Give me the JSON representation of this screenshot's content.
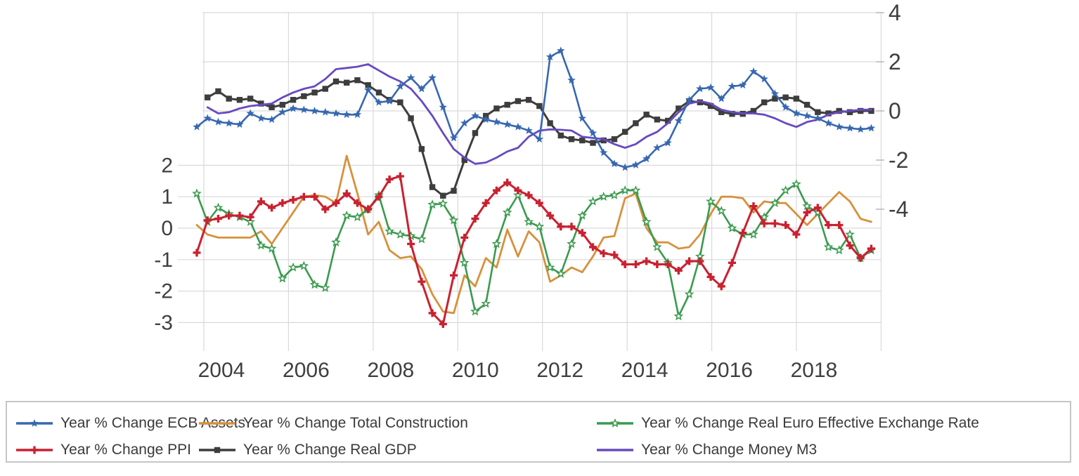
{
  "chart": {
    "background_color": "#ffffff",
    "grid_color": "#d9d9d9",
    "text_color": "#3f3f3f",
    "x_axis": {
      "tick_labels": [
        "2004",
        "2006",
        "2008",
        "2010",
        "2012",
        "2014",
        "2016",
        "2018"
      ]
    },
    "left_axis": {
      "tick_labels": [
        "2",
        "1",
        "0",
        "-1",
        "-2",
        "-3"
      ],
      "tick_values": [
        2,
        1,
        0,
        -1,
        -2,
        -3
      ]
    },
    "right_axis": {
      "tick_labels": [
        "4",
        "2",
        "0",
        "-2",
        "-4"
      ],
      "tick_values": [
        4,
        2,
        0,
        -2,
        -4
      ]
    }
  },
  "chart_data": {
    "type": "line",
    "title": "",
    "x_start": "2003Q4",
    "x_end": "2019Q3",
    "frequency": "quarterly",
    "n_points": 64,
    "x_tick_labels": [
      "2004",
      "2006",
      "2008",
      "2010",
      "2012",
      "2014",
      "2016",
      "2018"
    ],
    "left_axis_ticks": [
      2,
      1,
      0,
      -1,
      -2,
      -3
    ],
    "right_axis_ticks": [
      4,
      2,
      0,
      -2,
      -4
    ],
    "grid": true,
    "legend_position": "bottom",
    "legend_rows": [
      [
        0,
        1,
        2
      ],
      [
        3,
        4,
        5
      ]
    ],
    "series": [
      {
        "name": "Year % Change ECB Assets",
        "slug": "ecb-assets",
        "axis": "right",
        "color": "#3768b0",
        "marker": "star",
        "values": [
          -0.65,
          -0.3,
          -0.45,
          -0.5,
          -0.55,
          -0.1,
          -0.3,
          -0.35,
          -0.05,
          0.1,
          0.05,
          0,
          -0.05,
          -0.1,
          -0.15,
          -0.15,
          0.85,
          0.35,
          0.4,
          1.0,
          1.35,
          0.9,
          1.35,
          0.15,
          -1.1,
          -0.5,
          -0.2,
          -0.35,
          -0.45,
          -0.55,
          -0.65,
          -0.8,
          -1.15,
          2.2,
          2.45,
          1.25,
          -0.3,
          -0.9,
          -1.7,
          -2.15,
          -2.3,
          -2.2,
          -1.95,
          -1.5,
          -1.3,
          -0.4,
          0.45,
          0.9,
          0.95,
          0.5,
          1.0,
          1.05,
          1.6,
          1.3,
          0.7,
          0.15,
          -0.1,
          -0.2,
          -0.3,
          -0.5,
          -0.65,
          -0.7,
          -0.75,
          -0.7
        ]
      },
      {
        "name": "Year % Change Total Construction",
        "slug": "total-construction",
        "axis": "left",
        "color": "#d6913c",
        "marker": "none",
        "values": [
          0.1,
          -0.2,
          -0.3,
          -0.3,
          -0.3,
          -0.3,
          -0.1,
          -0.5,
          0.0,
          0.5,
          1.0,
          1.05,
          1.0,
          0.8,
          2.3,
          1.1,
          -0.2,
          0.2,
          -0.7,
          -0.95,
          -0.9,
          -1.3,
          -2.1,
          -2.65,
          -2.7,
          -1.5,
          -1.85,
          -0.95,
          -1.25,
          -0.05,
          -0.9,
          -0.1,
          -0.45,
          -1.7,
          -1.5,
          -1.25,
          -1.4,
          -0.9,
          -0.3,
          -0.25,
          0.95,
          1.1,
          0.0,
          -0.45,
          -0.45,
          -0.65,
          -0.6,
          -0.2,
          0.45,
          1.0,
          1.0,
          0.95,
          0.5,
          0.85,
          0.8,
          0.8,
          0.45,
          0.1,
          0.45,
          0.8,
          1.15,
          0.85,
          0.3,
          0.2
        ]
      },
      {
        "name": "Year % Change Real Euro Effective Exchange Rate",
        "slug": "real-euro-effective-exchange-rate",
        "axis": "left",
        "color": "#3a9a4e",
        "marker": "star-open",
        "values": [
          1.1,
          0.2,
          0.65,
          0.45,
          0.35,
          0.2,
          -0.55,
          -0.65,
          -1.6,
          -1.25,
          -1.2,
          -1.8,
          -1.9,
          -0.45,
          0.4,
          0.35,
          0.6,
          1.05,
          -0.1,
          -0.2,
          -0.25,
          -0.35,
          0.75,
          0.78,
          0.25,
          -1.1,
          -2.65,
          -2.4,
          -0.5,
          0.5,
          1.05,
          0.2,
          0.05,
          -1.25,
          -1.45,
          -0.5,
          0.4,
          0.85,
          1.0,
          1.05,
          1.2,
          1.2,
          0.2,
          -0.6,
          -1.1,
          -2.8,
          -2.1,
          -0.9,
          0.85,
          0.55,
          0.0,
          -0.2,
          -0.2,
          0.35,
          0.8,
          1.2,
          1.4,
          0.7,
          0.5,
          -0.6,
          -0.7,
          -0.2,
          -0.95,
          -0.7
        ]
      },
      {
        "name": "Year % Change PPI",
        "slug": "ppi",
        "axis": "left",
        "color": "#c92130",
        "marker": "plus",
        "values": [
          -0.78,
          0.25,
          0.3,
          0.4,
          0.4,
          0.35,
          0.85,
          0.65,
          0.8,
          0.9,
          1.0,
          1.0,
          0.6,
          0.8,
          1.1,
          0.8,
          0.6,
          1.0,
          1.55,
          1.65,
          -0.5,
          -1.7,
          -2.7,
          -3.05,
          -1.5,
          -0.3,
          0.3,
          0.8,
          1.2,
          1.45,
          1.2,
          1.05,
          0.8,
          0.4,
          0.05,
          0.05,
          -0.15,
          -0.6,
          -0.8,
          -0.85,
          -1.15,
          -1.15,
          -1.05,
          -1.15,
          -1.15,
          -1.35,
          -1.05,
          -1.05,
          -1.55,
          -1.85,
          -1.1,
          -0.15,
          0.7,
          0.15,
          0.15,
          0.1,
          -0.2,
          0.5,
          0.65,
          0.1,
          0.1,
          -0.55,
          -0.95,
          -0.65
        ]
      },
      {
        "name": "Year % Change Real GDP",
        "slug": "real-gdp",
        "axis": "right",
        "color": "#3d3d3d",
        "marker": "square",
        "values": [
          null,
          0.55,
          0.8,
          0.5,
          0.45,
          0.5,
          0.3,
          0.15,
          0.25,
          0.45,
          0.6,
          0.75,
          0.9,
          1.2,
          1.15,
          1.25,
          1.05,
          0.75,
          0.45,
          0.35,
          -0.3,
          -1.55,
          -3.1,
          -3.45,
          -3.25,
          -2.0,
          -0.9,
          -0.2,
          0.1,
          0.25,
          0.4,
          0.45,
          0.2,
          -0.5,
          -1.0,
          -1.15,
          -1.2,
          -1.3,
          -1.2,
          -1.15,
          -0.85,
          -0.5,
          -0.15,
          -0.35,
          -0.4,
          0.1,
          0.4,
          0.35,
          0.2,
          -0.05,
          -0.12,
          -0.12,
          0.0,
          0.35,
          0.5,
          0.55,
          0.5,
          0.25,
          -0.05,
          -0.1,
          0.0,
          -0.05,
          0.0,
          0.0
        ]
      },
      {
        "name": "Year % Change Money M3",
        "slug": "money-m3",
        "axis": "right",
        "color": "#684abf",
        "marker": "none",
        "values": [
          null,
          0.15,
          -0.1,
          -0.05,
          0.1,
          0.2,
          0.25,
          0.3,
          0.55,
          0.75,
          0.9,
          1.0,
          1.3,
          1.7,
          1.75,
          1.8,
          1.9,
          1.65,
          1.4,
          1.2,
          0.9,
          0.4,
          -0.2,
          -0.9,
          -1.55,
          -1.9,
          -2.15,
          -2.1,
          -1.9,
          -1.65,
          -1.5,
          -1.05,
          -0.8,
          -0.75,
          -0.77,
          -0.8,
          -1.05,
          -1.1,
          -1.15,
          -1.35,
          -1.5,
          -1.35,
          -1.05,
          -0.85,
          -0.5,
          -0.05,
          0.3,
          0.4,
          0.3,
          0.05,
          -0.05,
          -0.1,
          -0.1,
          -0.15,
          -0.3,
          -0.5,
          -0.65,
          -0.45,
          -0.35,
          -0.15,
          -0.05,
          0.0,
          0.05,
          0.05
        ]
      }
    ]
  }
}
